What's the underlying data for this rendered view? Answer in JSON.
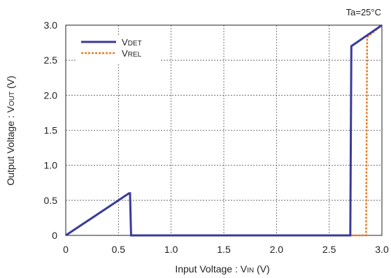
{
  "chart_data": {
    "type": "line",
    "annotation": "Ta=25°C",
    "xlabel": {
      "main": "Input Voltage : V",
      "sub": "IN",
      "suffix": " (V)"
    },
    "ylabel": {
      "main": "Output Voltage : V",
      "sub": "OUT",
      "suffix": " (V)"
    },
    "xlim": [
      0,
      3.0
    ],
    "ylim": [
      0,
      3.0
    ],
    "x_ticks": [
      "0",
      "0.5",
      "1.0",
      "1.5",
      "2.0",
      "2.5",
      "3.0"
    ],
    "y_ticks": [
      "0",
      "0.5",
      "1.0",
      "1.5",
      "2.0",
      "2.5",
      "3.0"
    ],
    "grid": true,
    "legend_position": "top-left",
    "series": [
      {
        "name": "VDET",
        "name_main": "V",
        "name_sub": "DET",
        "color": "#3a3a9a",
        "style": "solid",
        "points": [
          [
            0,
            0
          ],
          [
            0.6,
            0.6
          ],
          [
            0.61,
            0.6
          ],
          [
            0.62,
            0
          ],
          [
            2.7,
            0
          ],
          [
            2.71,
            2.7
          ],
          [
            3.0,
            3.0
          ]
        ]
      },
      {
        "name": "VREL",
        "name_main": "V",
        "name_sub": "REL",
        "color": "#ee7a1e",
        "style": "dotted",
        "points": [
          [
            0,
            0
          ],
          [
            0.6,
            0.6
          ],
          [
            0.61,
            0.6
          ],
          [
            0.62,
            0
          ],
          [
            2.85,
            0
          ],
          [
            2.86,
            2.83
          ],
          [
            3.0,
            3.0
          ]
        ]
      }
    ]
  }
}
